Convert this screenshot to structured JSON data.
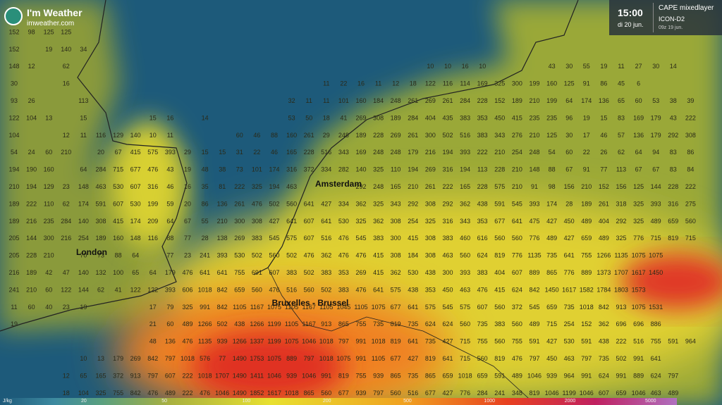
{
  "header": {
    "brand": "I'm Weather",
    "site": "imweather.com"
  },
  "panel": {
    "time": "15:00",
    "date": "di 20 jun.",
    "parameter": "CAPE mixedlayer",
    "model": "ICON-D2",
    "run": "09z 19 jun."
  },
  "cities": [
    "London",
    "Amsterdam",
    "Bruxelles - Brussel"
  ],
  "legend": {
    "unit": "J/kg",
    "labels": [
      "20",
      "50",
      "100",
      "200",
      "500",
      "1000",
      "2000",
      "5000"
    ]
  },
  "grid": {
    "rows": [
      [
        152,
        98,
        125,
        125
      ],
      [
        152,
        null,
        19,
        140,
        34
      ],
      [
        148,
        12,
        null,
        62,
        null,
        null,
        null,
        null,
        null,
        null,
        null,
        null,
        null,
        null,
        null,
        null,
        null,
        null,
        null,
        null,
        null,
        null,
        null,
        null,
        10,
        10,
        16,
        10,
        null,
        null,
        null,
        43,
        30,
        55,
        19,
        11,
        27,
        30,
        14
      ],
      [
        30,
        null,
        null,
        16,
        null,
        null,
        null,
        null,
        null,
        null,
        null,
        null,
        null,
        null,
        null,
        null,
        null,
        null,
        11,
        22,
        16,
        11,
        12,
        18,
        122,
        116,
        114,
        169,
        325,
        300,
        199,
        160,
        125,
        91,
        86,
        45,
        6
      ],
      [
        93,
        26,
        null,
        null,
        113,
        null,
        null,
        null,
        null,
        null,
        null,
        null,
        null,
        null,
        null,
        null,
        32,
        11,
        11,
        101,
        160,
        184,
        248,
        261,
        269,
        261,
        284,
        228,
        152,
        189,
        210,
        199,
        64,
        174,
        136,
        65,
        60,
        53,
        38,
        39
      ],
      [
        122,
        104,
        13,
        null,
        15,
        null,
        null,
        null,
        15,
        16,
        null,
        14,
        null,
        null,
        null,
        null,
        53,
        50,
        18,
        41,
        269,
        308,
        189,
        284,
        404,
        435,
        383,
        353,
        450,
        415,
        235,
        235,
        96,
        19,
        15,
        83,
        169,
        179,
        43,
        222
      ],
      [
        104,
        null,
        null,
        12,
        11,
        116,
        129,
        140,
        10,
        11,
        null,
        null,
        null,
        60,
        46,
        88,
        160,
        261,
        29,
        248,
        189,
        228,
        269,
        261,
        300,
        502,
        516,
        383,
        343,
        276,
        210,
        125,
        30,
        17,
        46,
        57,
        136,
        179,
        292,
        308
      ],
      [
        54,
        24,
        60,
        210,
        null,
        20,
        67,
        415,
        575,
        393,
        29,
        15,
        15,
        31,
        22,
        46,
        165,
        228,
        516,
        343,
        169,
        248,
        248,
        179,
        216,
        194,
        393,
        222,
        210,
        254,
        248,
        54,
        60,
        22,
        26,
        62,
        64,
        94,
        83,
        86
      ],
      [
        194,
        190,
        160,
        null,
        64,
        284,
        715,
        677,
        476,
        43,
        19,
        48,
        38,
        73,
        101,
        174,
        316,
        372,
        334,
        282,
        140,
        325,
        110,
        194,
        269,
        316,
        194,
        113,
        228,
        210,
        148,
        88,
        67,
        91,
        77,
        113,
        67,
        67,
        83,
        84
      ],
      [
        210,
        194,
        129,
        23,
        148,
        463,
        530,
        607,
        316,
        46,
        16,
        35,
        81,
        222,
        325,
        194,
        463,
        null,
        null,
        null,
        292,
        248,
        165,
        210,
        261,
        222,
        165,
        228,
        575,
        210,
        91,
        98,
        156,
        210,
        152,
        156,
        125,
        144,
        228,
        222
      ],
      [
        189,
        222,
        110,
        62,
        174,
        591,
        607,
        530,
        199,
        59,
        20,
        86,
        136,
        261,
        476,
        502,
        560,
        641,
        427,
        334,
        362,
        325,
        343,
        292,
        308,
        292,
        362,
        438,
        591,
        545,
        393,
        174,
        28,
        189,
        261,
        318,
        325,
        393,
        316,
        275
      ],
      [
        189,
        216,
        235,
        284,
        140,
        308,
        415,
        174,
        209,
        64,
        67,
        55,
        210,
        300,
        308,
        427,
        641,
        607,
        641,
        530,
        325,
        362,
        308,
        254,
        325,
        316,
        343,
        353,
        677,
        641,
        475,
        427,
        450,
        489,
        404,
        292,
        325,
        489,
        659,
        560
      ],
      [
        205,
        144,
        300,
        216,
        254,
        189,
        160,
        148,
        116,
        88,
        77,
        28,
        138,
        269,
        383,
        545,
        575,
        607,
        516,
        476,
        545,
        383,
        300,
        415,
        308,
        383,
        460,
        616,
        560,
        560,
        776,
        489,
        427,
        659,
        489,
        325,
        776,
        715,
        819,
        715
      ],
      [
        205,
        228,
        210,
        null,
        70,
        73,
        88,
        64,
        null,
        77,
        23,
        241,
        393,
        530,
        502,
        560,
        502,
        476,
        362,
        476,
        476,
        415,
        308,
        184,
        308,
        463,
        560,
        624,
        819,
        776,
        1135,
        735,
        641,
        755,
        1266,
        1135,
        1075,
        1075
      ],
      [
        216,
        189,
        42,
        47,
        140,
        132,
        100,
        65,
        64,
        179,
        476,
        641,
        641,
        755,
        691,
        607,
        383,
        502,
        383,
        353,
        269,
        415,
        362,
        530,
        438,
        300,
        393,
        383,
        404,
        607,
        889,
        865,
        776,
        889,
        1373,
        1707,
        1617,
        1450
      ],
      [
        241,
        210,
        60,
        122,
        144,
        62,
        41,
        122,
        122,
        393,
        606,
        1018,
        842,
        659,
        560,
        476,
        516,
        560,
        502,
        383,
        476,
        641,
        575,
        438,
        353,
        450,
        463,
        476,
        415,
        624,
        842,
        1450,
        1617,
        1582,
        1784,
        1803,
        1573
      ],
      [
        11,
        60,
        40,
        23,
        19,
        null,
        null,
        null,
        17,
        79,
        325,
        991,
        842,
        1105,
        1167,
        1075,
        1105,
        1167,
        1105,
        1045,
        1105,
        1075,
        677,
        641,
        575,
        545,
        575,
        607,
        560,
        372,
        545,
        659,
        735,
        1018,
        842,
        913,
        1075,
        1531
      ],
      [
        19,
        null,
        null,
        null,
        null,
        null,
        null,
        null,
        21,
        60,
        489,
        1266,
        502,
        438,
        1266,
        1199,
        1105,
        1167,
        913,
        865,
        755,
        735,
        819,
        735,
        624,
        624,
        560,
        735,
        383,
        560,
        489,
        715,
        254,
        152,
        362,
        696,
        696,
        886
      ],
      [
        null,
        null,
        null,
        null,
        null,
        null,
        null,
        null,
        48,
        136,
        476,
        1135,
        939,
        1266,
        1337,
        1199,
        1075,
        1046,
        1018,
        797,
        991,
        1018,
        819,
        641,
        735,
        427,
        715,
        755,
        560,
        755,
        591,
        427,
        530,
        591,
        438,
        222,
        516,
        755,
        591,
        964
      ],
      [
        null,
        null,
        null,
        null,
        10,
        13,
        179,
        269,
        842,
        797,
        1018,
        576,
        77,
        1490,
        1753,
        1075,
        889,
        797,
        1018,
        1075,
        991,
        1105,
        677,
        427,
        819,
        641,
        715,
        560,
        819,
        476,
        797,
        450,
        463,
        797,
        735,
        502,
        991,
        641
      ],
      [
        null,
        null,
        null,
        12,
        65,
        165,
        372,
        913,
        797,
        607,
        222,
        1018,
        1707,
        1490,
        1411,
        1046,
        939,
        1046,
        991,
        819,
        755,
        939,
        865,
        735,
        865,
        659,
        1018,
        659,
        591,
        489,
        1046,
        939,
        964,
        991,
        624,
        991,
        889,
        624,
        797
      ],
      [
        null,
        null,
        null,
        18,
        104,
        325,
        755,
        842,
        476,
        489,
        222,
        476,
        1046,
        1490,
        1852,
        1617,
        1018,
        865,
        560,
        677,
        939,
        797,
        560,
        516,
        677,
        427,
        776,
        284,
        241,
        348,
        819,
        1046,
        1199,
        1046,
        607,
        659,
        1046,
        463,
        489
      ]
    ]
  }
}
